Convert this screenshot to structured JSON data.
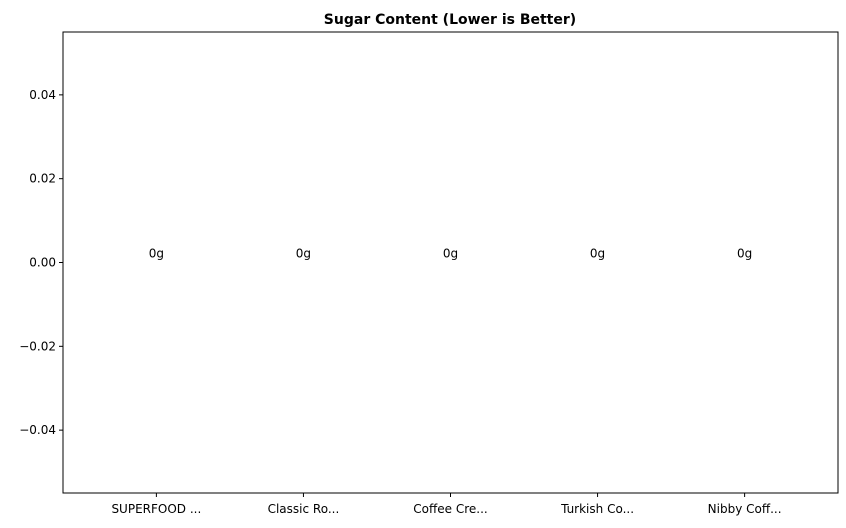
{
  "chart_data": {
    "type": "bar",
    "title": "Sugar Content (Lower is Better)",
    "xlabel": "",
    "ylabel": "",
    "categories": [
      "SUPERFOOD ...",
      "Classic Ro...",
      "Coffee Cre...",
      "Turkish Co...",
      "Nibby Coff..."
    ],
    "values": [
      0,
      0,
      0,
      0,
      0
    ],
    "data_labels": [
      "0g",
      "0g",
      "0g",
      "0g",
      "0g"
    ],
    "ylim": [
      -0.055,
      0.055
    ],
    "yticks": [
      -0.04,
      -0.02,
      0.0,
      0.02,
      0.04
    ],
    "ytick_labels": [
      "−0.04",
      "−0.02",
      "0.00",
      "0.02",
      "0.04"
    ],
    "grid": false,
    "bar_color": "#1f77b4"
  }
}
